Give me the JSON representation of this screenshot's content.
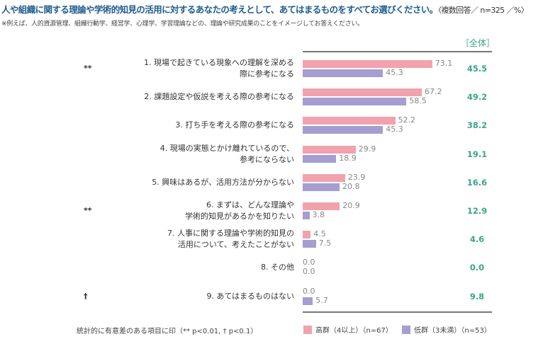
{
  "title": "人や組織に関する理論や学術的知見の活用に対するあなたの考えとして、あてはまるものをすべてお選びください。",
  "title_sub": "〈複数回答／ n=325 ／%〉",
  "note": "※例えば、人的資源管理、組織行動学、経営学、心理学、学習理論などの、理論や研究成果のことをイメージしてお答えください。",
  "footnote": "統計的に有意差のある項目に印（** p<0.01, † p<0.1）",
  "colors": {
    "high": "#f2a2ad",
    "low": "#a69dd0",
    "total": "#3aa58a"
  },
  "chart_data": {
    "type": "bar",
    "total_header": "［全体］",
    "xlim": [
      0,
      100
    ],
    "categories": [
      "1. 現場で起きている現象への理解を深める\n際に参考になる",
      "2. 課題設定や仮説を考える際の参考になる",
      "3. 打ち手を考える際の参考になる",
      "4. 現場の実態とかけ離れているので、\n参考にならない",
      "5. 興味はあるが、活用方法が分からない",
      "6. まずは、どんな理論や\n学術的知見があるかを知りたい",
      "7. 人事に関する理論や学術的知見の\n活用について、考えたことがない",
      "8. その他",
      "9. あてはまるものはない"
    ],
    "significance": [
      "**",
      "",
      "",
      "",
      "",
      "**",
      "",
      "",
      "†"
    ],
    "series": [
      {
        "name": "高群（4以上）（n=67）",
        "values": [
          73.1,
          67.2,
          52.2,
          29.9,
          23.9,
          20.9,
          4.5,
          0.0,
          0.0
        ]
      },
      {
        "name": "低群（3未満）（n=53）",
        "values": [
          45.3,
          58.5,
          45.3,
          18.9,
          20.8,
          3.8,
          7.5,
          0.0,
          5.7
        ]
      }
    ],
    "total": [
      45.5,
      49.2,
      38.2,
      19.1,
      16.6,
      12.9,
      4.6,
      0.0,
      9.8
    ]
  }
}
